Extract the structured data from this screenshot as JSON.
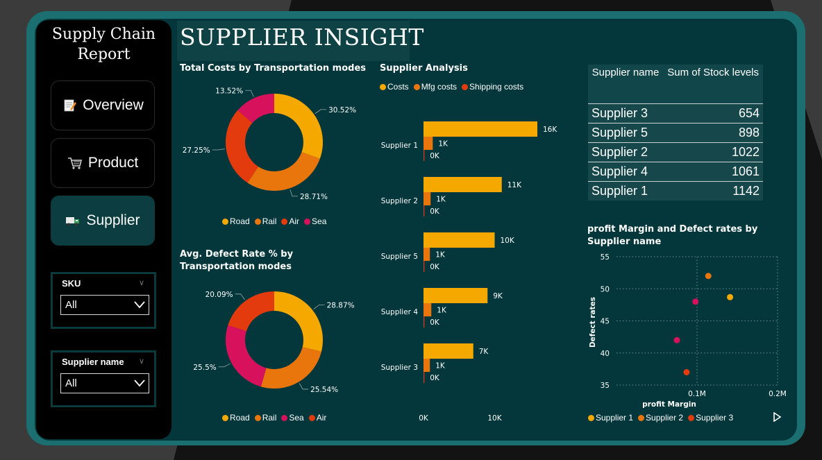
{
  "report": {
    "title": "Supply Chain\nReport"
  },
  "nav": [
    {
      "label": "Overview",
      "icon": "memo-icon"
    },
    {
      "label": "Product",
      "icon": "cart-icon"
    },
    {
      "label": "Supplier",
      "icon": "truck-icon",
      "active": true
    }
  ],
  "slicers": [
    {
      "label": "SKU",
      "value": "All"
    },
    {
      "label": "Supplier name",
      "value": "All"
    }
  ],
  "page": {
    "title": "SUPPLIER INSIGHT"
  },
  "colors": {
    "road": "#f5a800",
    "rail": "#e8760d",
    "air": "#e33b0e",
    "sea": "#d8115c",
    "frame": "#1c6f71",
    "panel": "#03373b"
  },
  "chart_data": [
    {
      "type": "pie",
      "title": "Total Costs by Transportation modes",
      "labels": [
        "Road",
        "Rail",
        "Air",
        "Sea"
      ],
      "values": [
        30.52,
        28.71,
        27.25,
        13.52
      ],
      "value_labels": [
        "30.52%",
        "28.71%",
        "27.25%",
        "13.52%"
      ],
      "legend": "bottom"
    },
    {
      "type": "pie",
      "title": "Avg. Defect Rate % by Transportation modes",
      "labels": [
        "Road",
        "Rail",
        "Sea",
        "Air"
      ],
      "values": [
        28.87,
        25.54,
        25.5,
        20.09
      ],
      "value_labels": [
        "28.87%",
        "25.54%",
        "25.5%",
        "20.09%"
      ],
      "legend": "bottom"
    },
    {
      "type": "bar",
      "title": "Supplier Analysis",
      "categories": [
        "Supplier 1",
        "Supplier 2",
        "Supplier 5",
        "Supplier 4",
        "Supplier 3"
      ],
      "series": [
        {
          "name": "Costs",
          "values": [
            16,
            11,
            10,
            9,
            7
          ],
          "value_labels": [
            "16K",
            "11K",
            "10K",
            "9K",
            "7K"
          ]
        },
        {
          "name": "Mfg costs",
          "values": [
            1.3,
            1.0,
            0.9,
            1.1,
            0.9
          ],
          "value_labels": [
            "1K",
            "1K",
            "1K",
            "1K",
            "1K"
          ]
        },
        {
          "name": "Shipping costs",
          "values": [
            0.1,
            0.1,
            0.1,
            0.1,
            0.1
          ],
          "value_labels": [
            "0K",
            "0K",
            "0K",
            "0K",
            "0K"
          ]
        }
      ],
      "x_ticks": [
        "0K",
        "10K"
      ],
      "xlim": [
        0,
        16
      ],
      "legend": "top"
    },
    {
      "type": "table",
      "columns": [
        "Supplier name",
        "Sum of Stock levels"
      ],
      "rows": [
        [
          "Supplier 3",
          "654"
        ],
        [
          "Supplier 5",
          "898"
        ],
        [
          "Supplier 2",
          "1022"
        ],
        [
          "Supplier 4",
          "1061"
        ],
        [
          "Supplier 1",
          "1142"
        ]
      ]
    },
    {
      "type": "scatter",
      "title": "profit Margin and Defect rates by Supplier name",
      "xlabel": "profit Margin",
      "ylabel": "Defect rates",
      "xlim": [
        0,
        0.2
      ],
      "ylim": [
        35,
        55
      ],
      "x_ticks": [
        0.1,
        0.2
      ],
      "x_tick_labels": [
        "0.1M",
        "0.2M"
      ],
      "y_ticks": [
        35,
        40,
        45,
        50,
        55
      ],
      "y_tick_labels": [
        "35",
        "40",
        "45",
        "50",
        "55"
      ],
      "series": [
        {
          "name": "Supplier 1",
          "color": "#f5a800",
          "points": [
            [
              0.141,
              48.7
            ]
          ]
        },
        {
          "name": "Supplier 2",
          "color": "#e8760d",
          "points": [
            [
              0.114,
              52.0
            ]
          ]
        },
        {
          "name": "Supplier 3",
          "color": "#e33b0e",
          "points": [
            [
              0.087,
              37.0
            ]
          ]
        },
        {
          "name": "",
          "color": "#d8115c",
          "points": [
            [
              0.098,
              48.0
            ],
            [
              0.075,
              42.0
            ]
          ]
        }
      ],
      "legend": "bottom"
    }
  ]
}
